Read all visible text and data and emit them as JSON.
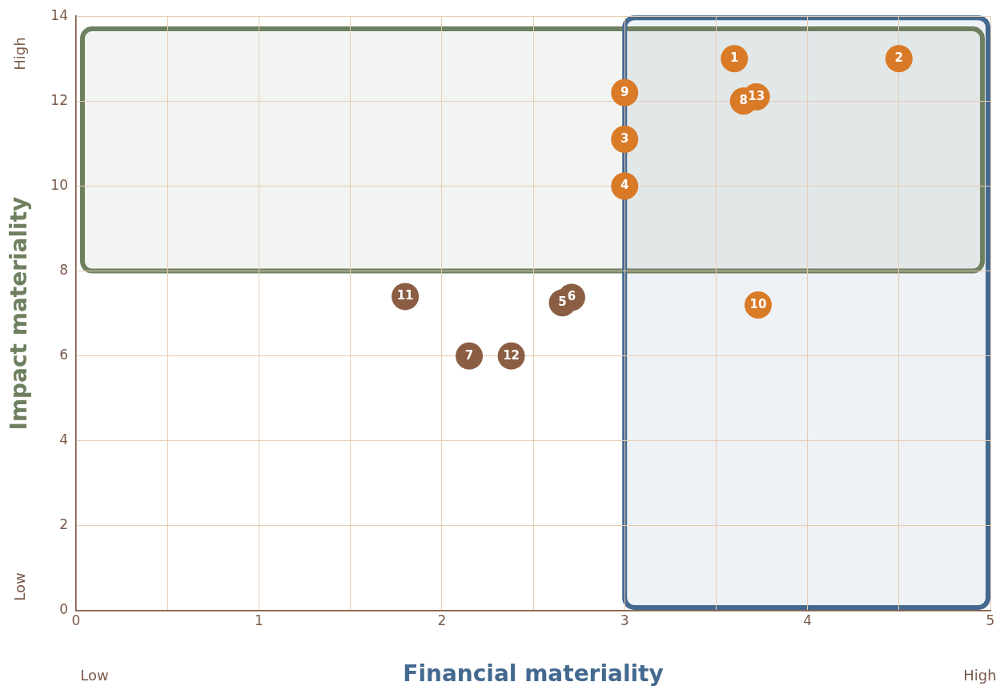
{
  "chart_data": {
    "type": "scatter",
    "xlabel": "Financial materiality",
    "ylabel": "Impact materiality",
    "xlim": [
      0,
      5
    ],
    "xticks": [
      0,
      {
        "value": 0.5,
        "label": null
      },
      1,
      {
        "value": 1.5,
        "label": null
      },
      2,
      {
        "value": 2.5,
        "label": null
      },
      3,
      {
        "value": 3.5,
        "label": null
      },
      4,
      {
        "value": 4.5,
        "label": null
      },
      5
    ],
    "ylim": [
      0,
      14
    ],
    "yticks": [
      0,
      2,
      4,
      6,
      8,
      10,
      12,
      14
    ],
    "grid": true,
    "marker": "circle",
    "legend": false,
    "series": [
      {
        "color": "#d97a27",
        "x": [
          3.6,
          4.5,
          3.0,
          3.0,
          3.0,
          3.65,
          3.72,
          3.73
        ],
        "values": [
          13,
          13,
          11.1,
          10,
          12.2,
          12,
          12.1,
          7.2
        ]
      },
      {
        "color": "#8b5e44",
        "x": [
          2.66,
          2.71,
          2.15,
          1.8,
          2.38
        ],
        "values": [
          7.25,
          7.38,
          6,
          7.4,
          6
        ]
      }
    ],
    "bands": [
      {
        "axis": "y",
        "from": 8,
        "to": 13.7,
        "color": "#6e8060"
      },
      {
        "axis": "x",
        "from": 3,
        "to": 5,
        "color": "#44698f"
      }
    ],
    "annotations": [
      "High",
      "Low",
      "Low",
      "High",
      {
        "text": "1",
        "x": 3.6,
        "y": 13
      },
      {
        "text": "2",
        "x": 4.5,
        "y": 13
      },
      {
        "text": "3",
        "x": 3.0,
        "y": 11.1
      },
      {
        "text": "4",
        "x": 3.0,
        "y": 10
      },
      {
        "text": "9",
        "x": 3.0,
        "y": 12.2
      },
      {
        "text": "8",
        "x": 3.65,
        "y": 12
      },
      {
        "text": "13",
        "x": 3.72,
        "y": 12.1
      },
      {
        "text": "10",
        "x": 3.73,
        "y": 7.2
      },
      {
        "text": "5",
        "x": 2.66,
        "y": 7.25
      },
      {
        "text": "6",
        "x": 2.71,
        "y": 7.38
      },
      {
        "text": "7",
        "x": 2.15,
        "y": 6
      },
      {
        "text": "11",
        "x": 1.8,
        "y": 7.4
      },
      {
        "text": "12",
        "x": 2.38,
        "y": 6
      }
    ]
  }
}
